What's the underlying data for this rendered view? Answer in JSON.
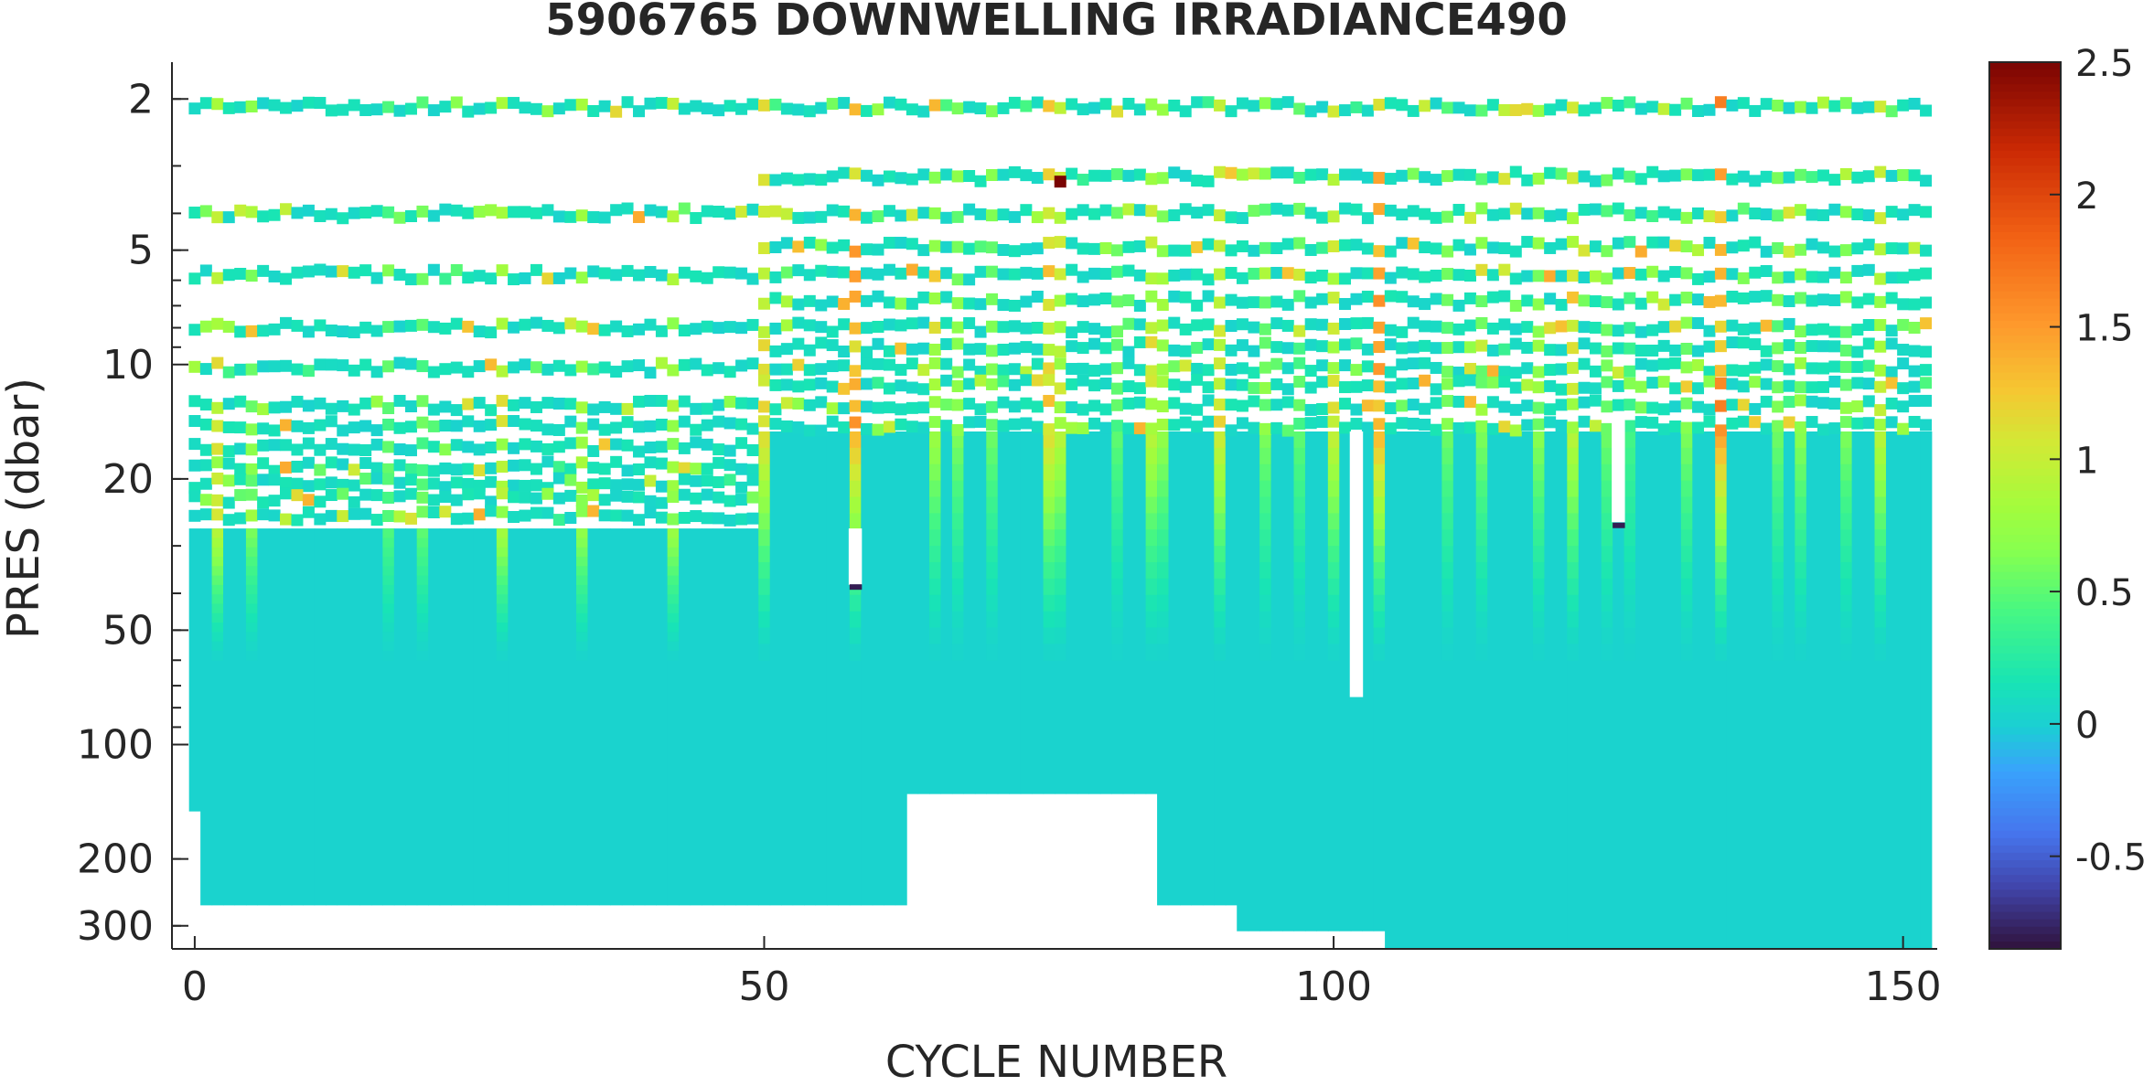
{
  "chart_data": {
    "type": "heatmap",
    "title": "5906765  DOWNWELLING IRRADIANCE490",
    "xlabel": "CYCLE NUMBER",
    "ylabel": "PRES (dbar)",
    "xlim": [
      -2,
      153
    ],
    "ylim": [
      1.6,
      345
    ],
    "yscale": "log",
    "y_reversed": true,
    "x_ticks": [
      0,
      50,
      100,
      150
    ],
    "x_tick_labels": [
      "0",
      "50",
      "100",
      "150"
    ],
    "y_ticks": [
      2,
      5,
      10,
      20,
      50,
      100,
      200,
      300
    ],
    "y_tick_labels": [
      "2",
      "5",
      "10",
      "20",
      "50",
      "100",
      "200",
      "300"
    ],
    "colorbar": {
      "colormap": "turbo",
      "clim": [
        -0.85,
        2.5
      ],
      "ticks": [
        -0.5,
        0,
        0.5,
        1,
        1.5,
        2,
        2.5
      ],
      "tick_labels": [
        "-0.5",
        "0",
        "0.5",
        "1",
        "1.5",
        "2",
        "2.5"
      ]
    },
    "background_value": 0.02,
    "grid": false,
    "profiles": [
      {
        "cycles": [
          0,
          0
        ],
        "max_pres": 150
      },
      {
        "cycles": [
          1,
          62
        ],
        "max_pres": 265
      },
      {
        "cycles": [
          63,
          84
        ],
        "max_pres": 135
      },
      {
        "cycles": [
          85,
          91
        ],
        "max_pres": 265
      },
      {
        "cycles": [
          92,
          104
        ],
        "max_pres": 310
      },
      {
        "cycles": [
          105,
          152
        ],
        "max_pres": 345
      }
    ],
    "dense_top_pres": [
      {
        "cycles": [
          0,
          49
        ],
        "pres": 27
      },
      {
        "cycles": [
          50,
          152
        ],
        "pres": 15
      }
    ],
    "sample_levels": [
      {
        "pres": 2.1,
        "cycles": [
          0,
          152
        ]
      },
      {
        "pres": 3.2,
        "cycles": [
          50,
          152
        ]
      },
      {
        "pres": 4.0,
        "cycles": [
          0,
          152
        ]
      },
      {
        "pres": 4.9,
        "cycles": [
          50,
          152
        ]
      },
      {
        "pres": 5.8,
        "cycles": [
          0,
          152
        ]
      },
      {
        "pres": 6.8,
        "cycles": [
          50,
          152
        ]
      },
      {
        "pres": 8.0,
        "cycles": [
          0,
          152
        ]
      },
      {
        "pres": 9.0,
        "cycles": [
          50,
          152
        ]
      },
      {
        "pres": 10.2,
        "cycles": [
          0,
          152
        ]
      },
      {
        "pres": 11.3,
        "cycles": [
          50,
          152
        ]
      },
      {
        "pres": 12.8,
        "cycles": [
          0,
          152
        ]
      },
      {
        "pres": 14.5,
        "cycles": [
          0,
          152
        ]
      },
      {
        "pres": 16.5,
        "cycles": [
          0,
          49
        ]
      },
      {
        "pres": 18.5,
        "cycles": [
          0,
          49
        ]
      },
      {
        "pres": 20.5,
        "cycles": [
          0,
          49
        ]
      },
      {
        "pres": 22.5,
        "cycles": [
          0,
          49
        ]
      },
      {
        "pres": 25.0,
        "cycles": [
          0,
          49
        ]
      }
    ],
    "high_value_columns": [
      {
        "cycle": 2,
        "value": 0.9
      },
      {
        "cycle": 5,
        "value": 0.6
      },
      {
        "cycle": 17,
        "value": 0.45
      },
      {
        "cycle": 20,
        "value": 0.5
      },
      {
        "cycle": 27,
        "value": 0.8
      },
      {
        "cycle": 34,
        "value": 0.7
      },
      {
        "cycle": 42,
        "value": 0.75
      },
      {
        "cycle": 50,
        "value": 1.1
      },
      {
        "cycle": 58,
        "value": 1.3
      },
      {
        "cycle": 65,
        "value": 0.75
      },
      {
        "cycle": 67,
        "value": 0.6
      },
      {
        "cycle": 70,
        "value": 0.55
      },
      {
        "cycle": 75,
        "value": 1.1
      },
      {
        "cycle": 76,
        "value": 0.9
      },
      {
        "cycle": 81,
        "value": 0.5
      },
      {
        "cycle": 84,
        "value": 0.9
      },
      {
        "cycle": 85,
        "value": 0.7
      },
      {
        "cycle": 90,
        "value": 1.0
      },
      {
        "cycle": 94,
        "value": 0.6
      },
      {
        "cycle": 97,
        "value": 0.5
      },
      {
        "cycle": 100,
        "value": 0.95
      },
      {
        "cycle": 104,
        "value": 1.3
      },
      {
        "cycle": 110,
        "value": 0.55
      },
      {
        "cycle": 113,
        "value": 0.6
      },
      {
        "cycle": 118,
        "value": 0.65
      },
      {
        "cycle": 121,
        "value": 0.9
      },
      {
        "cycle": 124,
        "value": 0.55
      },
      {
        "cycle": 126,
        "value": 0.4
      },
      {
        "cycle": 131,
        "value": 0.6
      },
      {
        "cycle": 134,
        "value": 1.4
      },
      {
        "cycle": 139,
        "value": 0.55
      },
      {
        "cycle": 141,
        "value": 0.65
      },
      {
        "cycle": 145,
        "value": 0.6
      },
      {
        "cycle": 148,
        "value": 0.9
      }
    ],
    "missing_segments": [
      {
        "cycle": 58,
        "pres": [
          27,
          38
        ]
      },
      {
        "cycle": 102,
        "pres": [
          15,
          75
        ]
      },
      {
        "cycle": 125,
        "pres": [
          14,
          26
        ]
      }
    ],
    "low_value_points": [
      {
        "cycle": 58,
        "pres": 38.5,
        "value": -0.8
      },
      {
        "cycle": 125,
        "pres": 26.5,
        "value": -0.8
      }
    ],
    "max_point": {
      "cycle": 76,
      "pres": 3.3,
      "value": 2.5
    }
  }
}
